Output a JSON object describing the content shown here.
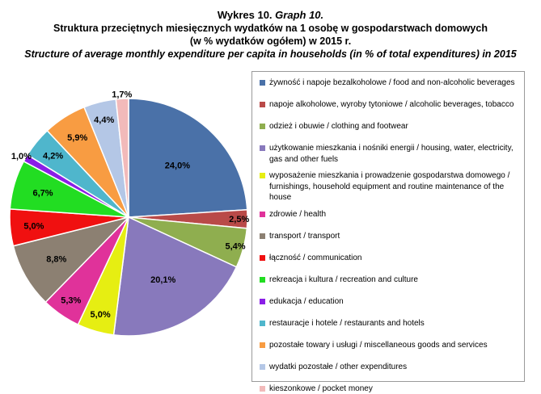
{
  "title": {
    "line1_pl": "Wykres 10.",
    "line1_en": "Graph 10.",
    "line2": "Struktura przeciętnych miesięcznych wydatków na 1 osobę w gospodarstwach domowych",
    "line3": "(w % wydatków ogółem) w 2015 r.",
    "line4": "Structure of average monthly expenditure per capita in households (in % of total expenditures) in 2015"
  },
  "chart_data": {
    "type": "pie",
    "start_angle_deg": 0,
    "direction": "clockwise",
    "legend_placement": "right",
    "slices": [
      {
        "label": "żywność i napoje bezalkoholowe / food and non-alcoholic beverages",
        "value": 24.0,
        "value_label": "24,0%",
        "color": "#4a71a8"
      },
      {
        "label": "napoje alkoholowe, wyroby tytoniowe / alcoholic beverages, tobacco",
        "value": 2.5,
        "value_label": "2,5%",
        "color": "#b94a48"
      },
      {
        "label": "odzież i obuwie / clothing and footwear",
        "value": 5.4,
        "value_label": "5,4%",
        "color": "#8fae4f"
      },
      {
        "label": "użytkowanie mieszkania i nośniki energii / housing, water, electricity, gas and other fuels",
        "value": 20.1,
        "value_label": "20,1%",
        "color": "#8879bc"
      },
      {
        "label": "wyposażenie mieszkania i prowadzenie gospodarstwa domowego / furnishings, household equipment and routine maintenance of the house",
        "value": 5.0,
        "value_label": "5,0%",
        "color": "#e6ee12"
      },
      {
        "label": "zdrowie / health",
        "value": 5.3,
        "value_label": "5,3%",
        "color": "#e0329a"
      },
      {
        "label": "transport / transport",
        "value": 8.8,
        "value_label": "8,8%",
        "color": "#8c8072"
      },
      {
        "label": "łączność / communication",
        "value": 5.0,
        "value_label": "5,0%",
        "color": "#f01010"
      },
      {
        "label": "rekreacja i kultura / recreation and culture",
        "value": 6.7,
        "value_label": "6,7%",
        "color": "#22dd22"
      },
      {
        "label": "edukacja / education",
        "value": 1.0,
        "value_label": "1,0%",
        "color": "#8a1ee6"
      },
      {
        "label": "restauracje i hotele / restaurants and hotels",
        "value": 4.2,
        "value_label": "4,2%",
        "color": "#4fb6cc"
      },
      {
        "label": "pozostałe towary i usługi / miscellaneous goods and services",
        "value": 5.9,
        "value_label": "5,9%",
        "color": "#f89c42"
      },
      {
        "label": "wydatki pozostałe / other expenditures",
        "value": 4.4,
        "value_label": "4,4%",
        "color": "#b4c7e6"
      },
      {
        "label": "kieszonkowe / pocket money",
        "value": 1.7,
        "value_label": "1,7%",
        "color": "#f2baba"
      }
    ]
  }
}
